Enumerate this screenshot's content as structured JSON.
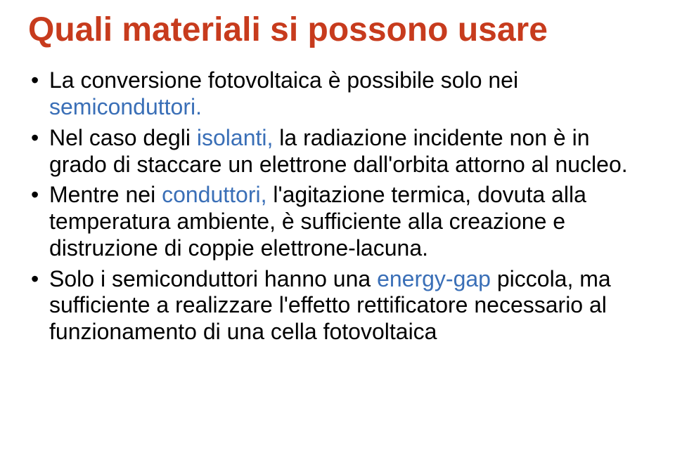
{
  "colors": {
    "title": "#c73b1d",
    "body_text": "#000000",
    "highlight": "#3a6fb7",
    "background": "#ffffff"
  },
  "typography": {
    "title_fontsize": 48,
    "title_fontweight": 700,
    "body_fontsize": 32,
    "font_family": "Arial"
  },
  "title": "Quali materiali si possono usare",
  "bullets": [
    {
      "segments": [
        {
          "text": "La conversione fotovoltaica è possibile solo nei ",
          "hl": false
        },
        {
          "text": "semiconduttori.",
          "hl": true
        }
      ]
    },
    {
      "segments": [
        {
          "text": "Nel caso degli ",
          "hl": false
        },
        {
          "text": "isolanti, ",
          "hl": true
        },
        {
          "text": "la radiazione incidente non è in grado di staccare un elettrone dall'orbita attorno al nucleo.",
          "hl": false
        }
      ]
    },
    {
      "segments": [
        {
          "text": "Mentre nei ",
          "hl": false
        },
        {
          "text": "conduttori, ",
          "hl": true
        },
        {
          "text": "l'agitazione termica, dovuta alla temperatura ambiente, è sufficiente alla creazione e distruzione di coppie elettrone-lacuna.",
          "hl": false
        }
      ]
    },
    {
      "segments": [
        {
          "text": "Solo i semiconduttori hanno una ",
          "hl": false
        },
        {
          "text": "energy-gap ",
          "hl": true
        },
        {
          "text": "piccola, ma sufficiente a realizzare l'effetto rettificatore necessario al funzionamento di una cella fotovoltaica",
          "hl": false
        }
      ]
    }
  ]
}
